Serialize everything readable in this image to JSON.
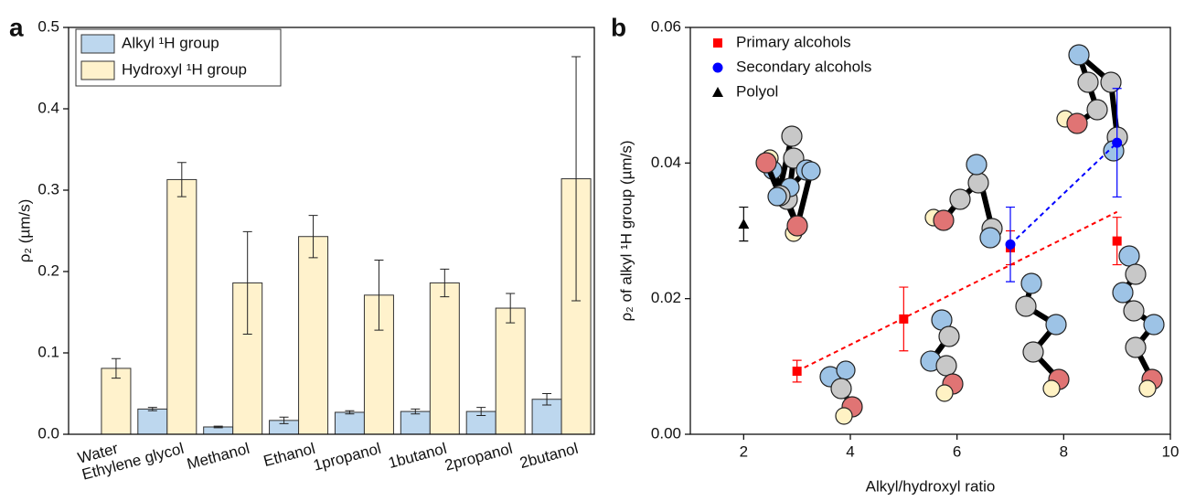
{
  "chart_data": [
    {
      "type": "bar",
      "panel_label": "a",
      "ylabel": "ρ₂ (µm/s)",
      "categories": [
        "Water",
        "Ethylene glycol",
        "Methanol",
        "Ethanol",
        "1propanol",
        "1butanol",
        "2propanol",
        "2butanol"
      ],
      "series": [
        {
          "name": "Alkyl ¹H group",
          "color": "#bdd7ee",
          "values": [
            null,
            0.031,
            0.009,
            0.017,
            0.027,
            0.028,
            0.028,
            0.043
          ],
          "errors": [
            null,
            0.002,
            0.001,
            0.004,
            0.002,
            0.003,
            0.005,
            0.007
          ]
        },
        {
          "name": "Hydroxyl ¹H group",
          "color": "#fff2cc",
          "values": [
            0.081,
            0.313,
            0.186,
            0.243,
            0.171,
            0.186,
            0.155,
            0.314
          ],
          "errors": [
            0.012,
            0.021,
            0.063,
            0.026,
            0.043,
            0.017,
            0.018,
            0.15
          ]
        }
      ],
      "ylim": [
        0,
        0.5
      ],
      "yticks": [
        {
          "value": 0,
          "label": "0.0"
        },
        0.1,
        0.2,
        0.3,
        0.4,
        0.5
      ],
      "legend": "upper left"
    },
    {
      "type": "scatter",
      "panel_label": "b",
      "xlabel": "Alkyl/hydroxyl ratio",
      "ylabel": "ρ₂ of alkyl ¹H group (µm/s)",
      "series": [
        {
          "name": "Primary alcohols",
          "color": "#ff0000",
          "marker": "square",
          "x": [
            3,
            5,
            7,
            9
          ],
          "values": [
            0.0093,
            0.017,
            0.0275,
            0.0285
          ],
          "errors": [
            0.0016,
            0.0047,
            0.0025,
            0.0035
          ]
        },
        {
          "name": "Secondary alcohols",
          "color": "#0000ff",
          "marker": "circle",
          "x": [
            7,
            9
          ],
          "values": [
            0.028,
            0.043
          ],
          "errors": [
            0.0055,
            0.008
          ]
        },
        {
          "name": "Polyol",
          "color": "#000000",
          "marker": "triangle",
          "x": [
            2
          ],
          "values": [
            0.031
          ],
          "errors": [
            0.0025
          ]
        }
      ],
      "fit_lines": [
        {
          "color": "#ff0000",
          "x": [
            3,
            9
          ],
          "values": [
            0.0093,
            0.0328
          ]
        },
        {
          "color": "#0000ff",
          "x": [
            7,
            9
          ],
          "values": [
            0.028,
            0.043
          ]
        }
      ],
      "xlim": [
        1,
        10
      ],
      "xticks": [
        2,
        4,
        6,
        8,
        10
      ],
      "ylim": [
        0,
        0.06
      ],
      "yticks": [
        {
          "value": 0,
          "label": "0.00"
        },
        {
          "value": 0.02,
          "label": "0.02"
        },
        {
          "value": 0.04,
          "label": "0.04"
        },
        {
          "value": 0.06,
          "label": "0.06"
        }
      ],
      "legend": "upper left"
    }
  ]
}
